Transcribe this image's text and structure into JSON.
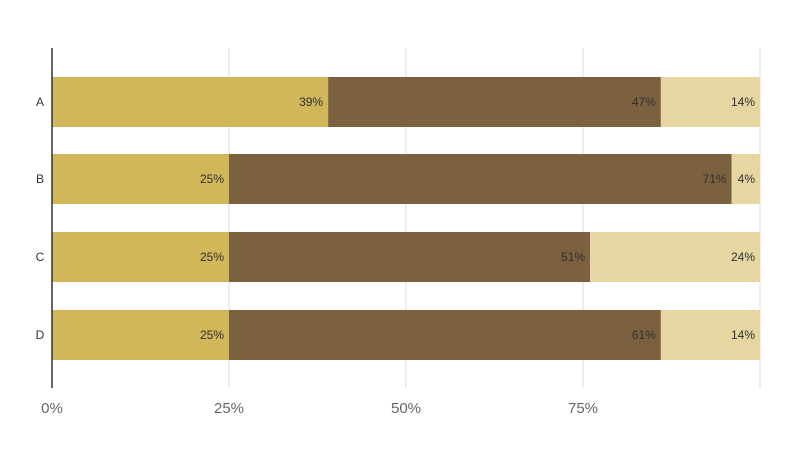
{
  "chart_data": {
    "type": "bar",
    "orientation": "horizontal",
    "stacked": true,
    "title": "",
    "xlabel": "",
    "ylabel": "",
    "xlim": [
      0,
      100
    ],
    "grid": true,
    "legend": "none",
    "categories": [
      "A",
      "B",
      "C",
      "D"
    ],
    "x_ticks": [
      "0%",
      "25%",
      "50%",
      "75%"
    ],
    "x_tick_values": [
      0,
      25,
      50,
      75
    ],
    "series": [
      {
        "values": [
          39,
          25,
          25,
          25
        ],
        "labels": [
          "39%",
          "25%",
          "25%",
          "25%"
        ],
        "color": "#d1b75a"
      },
      {
        "values": [
          47,
          71,
          51,
          61
        ],
        "labels": [
          "47%",
          "71%",
          "51%",
          "61%"
        ],
        "color": "#7c6140"
      },
      {
        "values": [
          14,
          4,
          24,
          14
        ],
        "labels": [
          "14%",
          "4%",
          "24%",
          "14%"
        ],
        "color": "#e6d7a2"
      }
    ]
  }
}
